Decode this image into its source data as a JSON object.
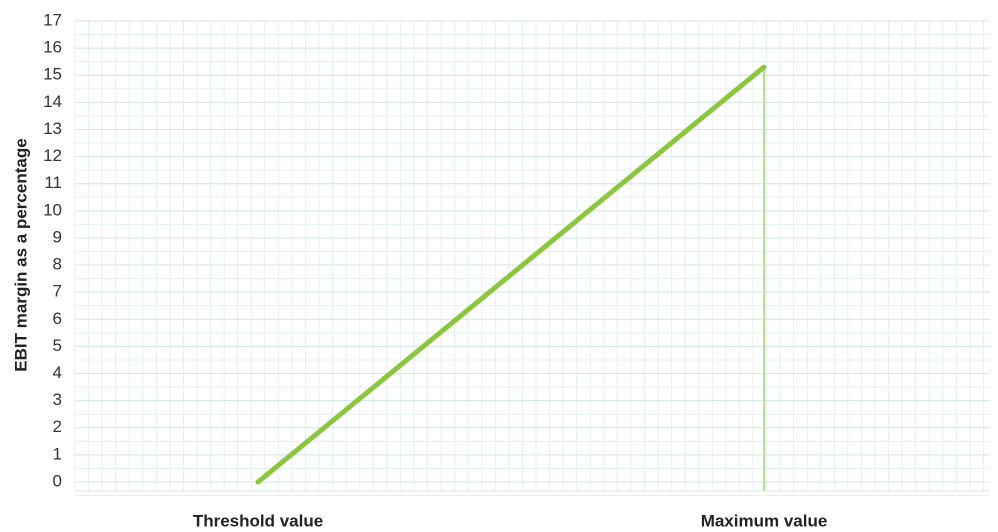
{
  "chart_data": {
    "type": "line",
    "y_label": "EBIT margin as a percentage",
    "categories": [
      "Threshold value",
      "Maximum value"
    ],
    "values": [
      0,
      15.3
    ],
    "color": "#8cc63e",
    "drop_line_color": "#b9de8f",
    "ylim": [
      0,
      17
    ],
    "yticks": [
      0,
      1,
      2,
      3,
      4,
      5,
      6,
      7,
      8,
      9,
      10,
      11,
      12,
      13,
      14,
      15,
      16,
      17
    ],
    "grid": true
  }
}
